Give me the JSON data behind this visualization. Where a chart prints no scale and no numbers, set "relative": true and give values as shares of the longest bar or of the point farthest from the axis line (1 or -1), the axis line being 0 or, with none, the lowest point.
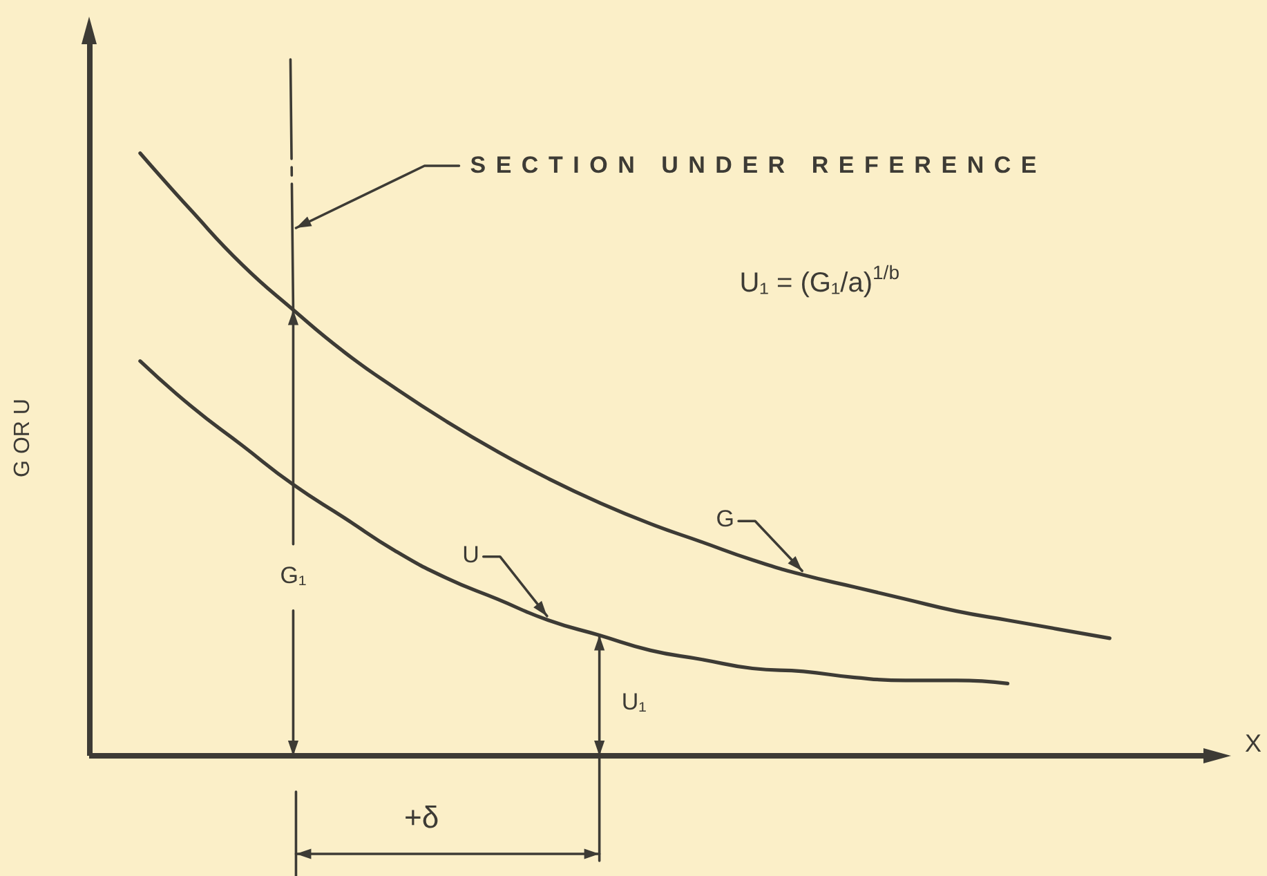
{
  "chart_data": {
    "type": "line",
    "relative": true,
    "xlabel": "X",
    "ylabel": "G OR U",
    "marker": "none",
    "annotations": [
      "SECTION UNDER REFERENCE",
      "U₁ = (G₁/a)$^{1/b}$",
      "G₁",
      "U₁",
      "+δ"
    ],
    "categories": [
      null,
      null,
      null,
      null,
      null,
      null,
      null,
      null,
      null,
      null,
      null,
      null,
      null,
      null,
      null,
      null,
      null,
      null,
      null,
      null,
      null,
      null,
      null
    ],
    "series": [
      {
        "name": "G",
        "color": "#3d3b35",
        "values": [
          null,
          1.0,
          0.905,
          0.815,
          0.74,
          0.67,
          0.61,
          0.555,
          0.505,
          0.46,
          0.42,
          0.385,
          0.355,
          0.325,
          0.3,
          0.28,
          0.26,
          0.24,
          0.225,
          0.21,
          0.195,
          null,
          null
        ]
      },
      {
        "name": "U",
        "color": "#3d3b35",
        "values": [
          null,
          0.655,
          0.58,
          0.515,
          0.45,
          0.395,
          0.34,
          0.295,
          0.26,
          0.225,
          0.2,
          0.175,
          0.16,
          0.145,
          0.14,
          0.13,
          0.125,
          0.125,
          0.12,
          null,
          null,
          null,
          null
        ]
      }
    ]
  }
}
